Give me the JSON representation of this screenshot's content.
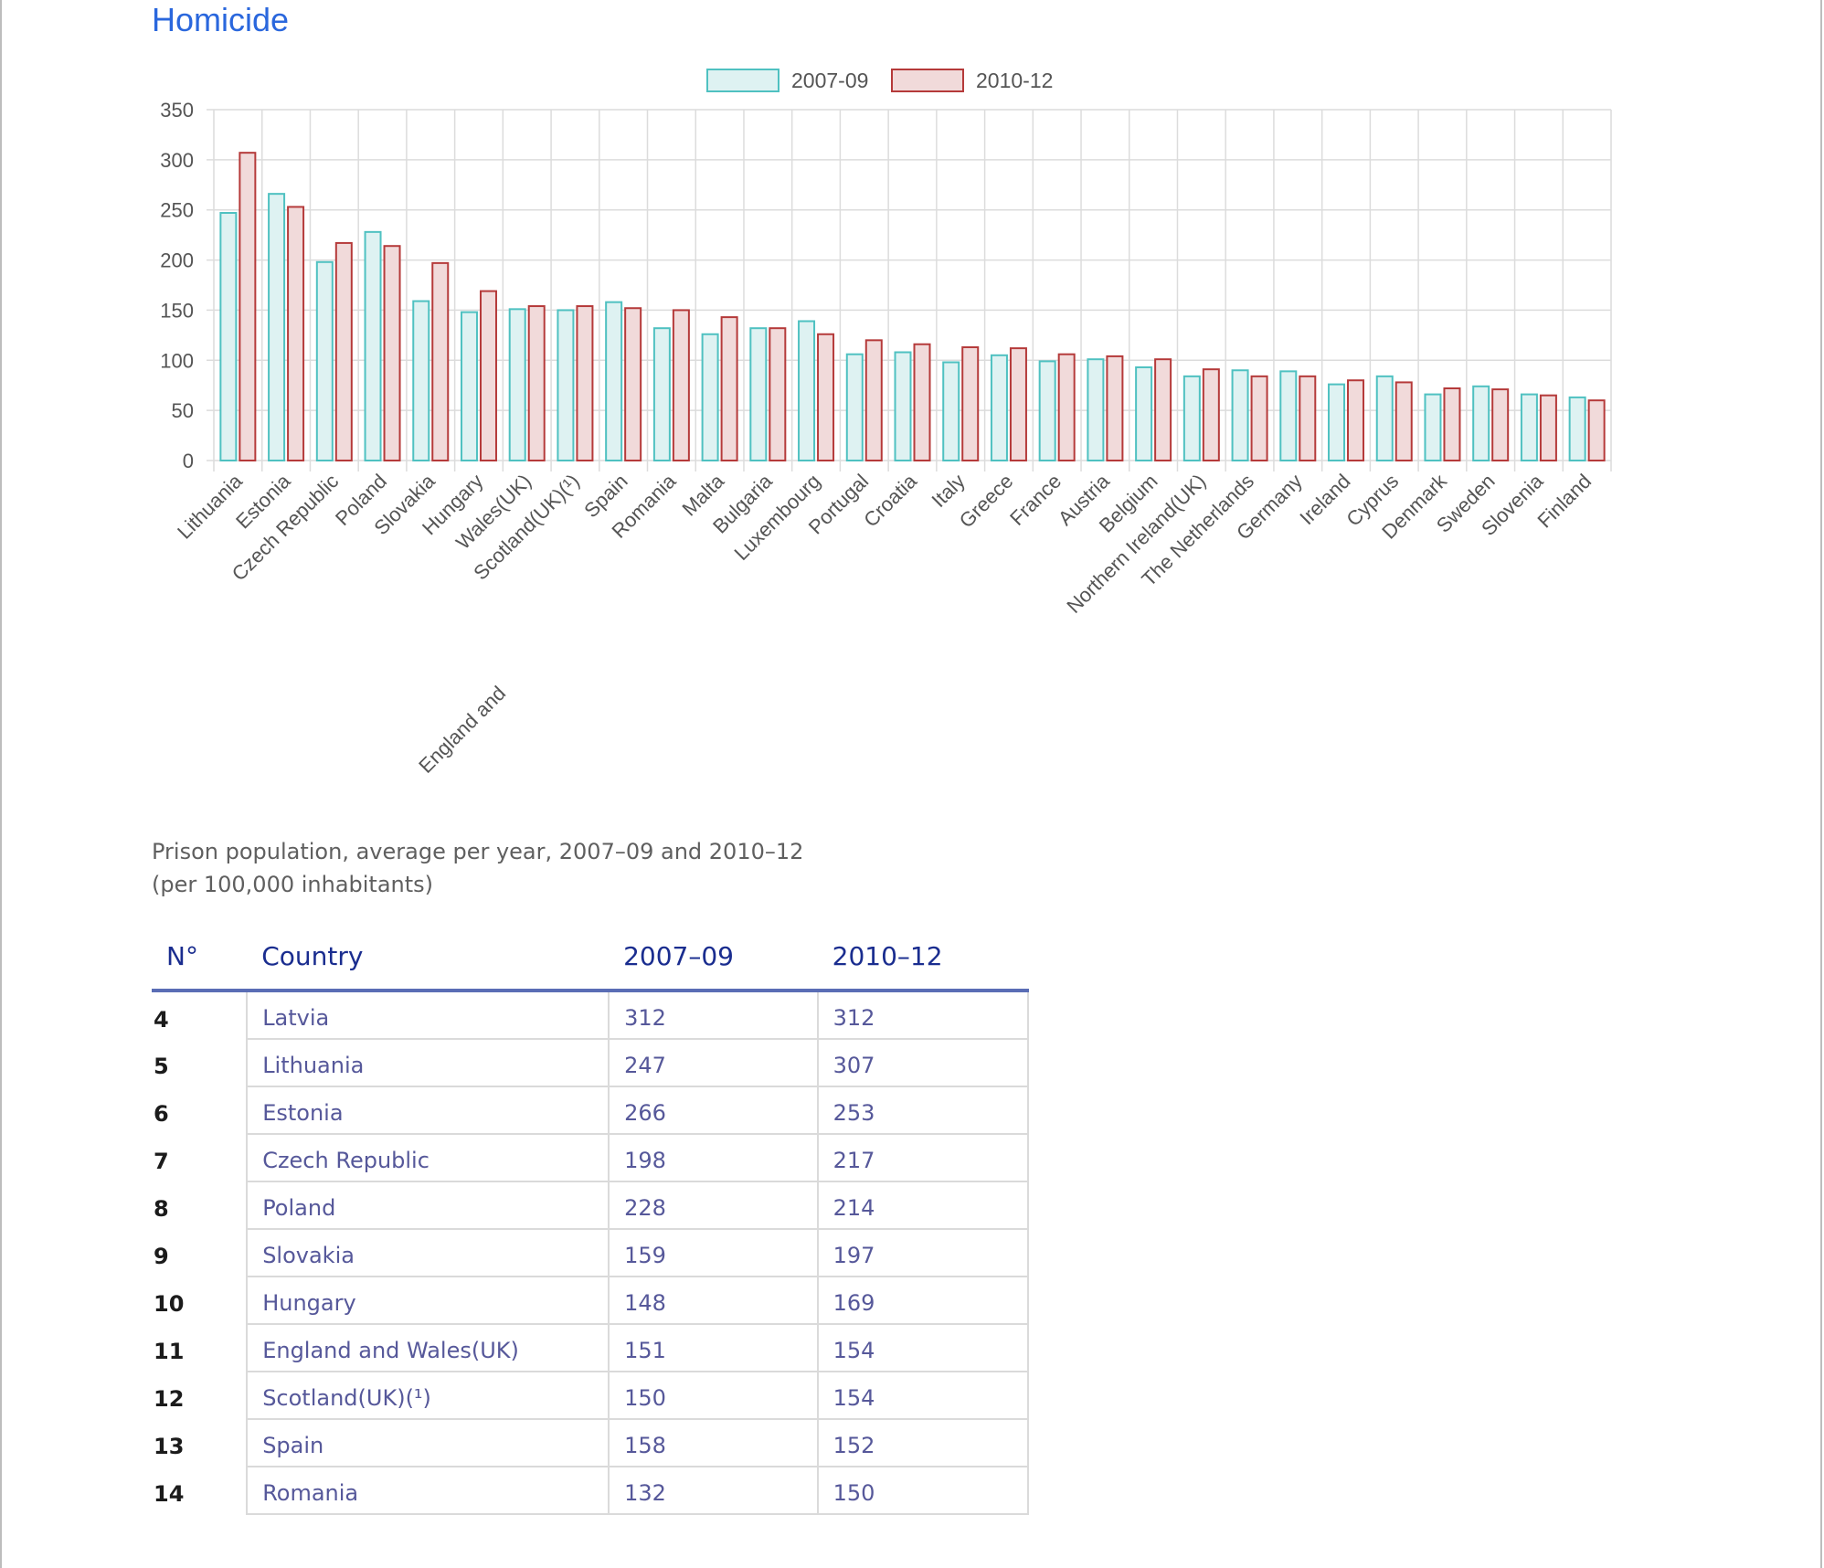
{
  "heading": "Homicide",
  "chart_data": {
    "type": "bar",
    "categories": [
      "Lithuania",
      "Estonia",
      "Czech Republic",
      "Poland",
      "Slovakia",
      "Hungary",
      "England and Wales(UK)",
      "Scotland(UK)(¹)",
      "Spain",
      "Romania",
      "Malta",
      "Bulgaria",
      "Luxembourg",
      "Portugal",
      "Croatia",
      "Italy",
      "Greece",
      "France",
      "Austria",
      "Belgium",
      "Northern Ireland(UK)",
      "The Netherlands",
      "Germany",
      "Ireland",
      "Cyprus",
      "Denmark",
      "Sweden",
      "Slovenia",
      "Finland"
    ],
    "series": [
      {
        "name": "2007-09",
        "color": "#4fc1c1",
        "fill": "#def2f2",
        "values": [
          247,
          266,
          198,
          228,
          159,
          148,
          151,
          150,
          158,
          132,
          126,
          132,
          139,
          106,
          108,
          98,
          105,
          99,
          101,
          93,
          84,
          90,
          89,
          76,
          84,
          66,
          74,
          66,
          63
        ]
      },
      {
        "name": "2010-12",
        "color": "#b53a3a",
        "fill": "#f1dada",
        "values": [
          307,
          253,
          217,
          214,
          197,
          169,
          154,
          154,
          152,
          150,
          143,
          132,
          126,
          120,
          116,
          113,
          112,
          106,
          104,
          101,
          91,
          84,
          84,
          80,
          78,
          72,
          71,
          65,
          60
        ]
      }
    ],
    "yticks": [
      "0",
      "50",
      "100",
      "150",
      "200",
      "250",
      "300",
      "350"
    ],
    "ylim": [
      0,
      350
    ],
    "grid": true,
    "legend": "top-center"
  },
  "caption": {
    "line1": "Prison population, average per year, 2007–09 and 2010–12",
    "line2": "(per 100,000 inhabitants)"
  },
  "table": {
    "headers": {
      "num": "N°",
      "country": "Country",
      "a": "2007–09",
      "b": "2010–12"
    },
    "rows": [
      {
        "n": "4",
        "country": "Latvia",
        "a": "312",
        "b": "312"
      },
      {
        "n": "5",
        "country": "Lithuania",
        "a": "247",
        "b": "307"
      },
      {
        "n": "6",
        "country": "Estonia",
        "a": "266",
        "b": "253"
      },
      {
        "n": "7",
        "country": "Czech Republic",
        "a": "198",
        "b": "217"
      },
      {
        "n": "8",
        "country": "Poland",
        "a": "228",
        "b": "214"
      },
      {
        "n": "9",
        "country": "Slovakia",
        "a": "159",
        "b": "197"
      },
      {
        "n": "10",
        "country": "Hungary",
        "a": "148",
        "b": "169"
      },
      {
        "n": "11",
        "country": "England and Wales(UK)",
        "a": "151",
        "b": "154"
      },
      {
        "n": "12",
        "country": "Scotland(UK)(¹)",
        "a": "150",
        "b": "154"
      },
      {
        "n": "13",
        "country": "Spain",
        "a": "158",
        "b": "152"
      },
      {
        "n": "14",
        "country": "Romania",
        "a": "132",
        "b": "150"
      }
    ]
  }
}
